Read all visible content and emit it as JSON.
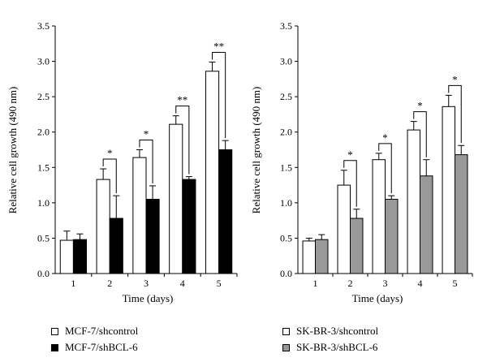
{
  "chart_data": [
    {
      "type": "bar",
      "xlabel": "Time (days)",
      "ylabel": "Relative cell growth (490 nm)",
      "ylim": [
        0,
        3.5
      ],
      "yticks": [
        "0.0",
        "0.5",
        "1.0",
        "1.5",
        "2.0",
        "2.5",
        "3.0",
        "3.5"
      ],
      "categories": [
        "1",
        "2",
        "3",
        "4",
        "5"
      ],
      "series": [
        {
          "name": "MCF-7/shcontrol",
          "color": "#ffffff",
          "values": [
            0.47,
            1.33,
            1.64,
            2.11,
            2.86
          ],
          "errors": [
            0.13,
            0.15,
            0.11,
            0.12,
            0.13
          ]
        },
        {
          "name": "MCF-7/shBCL-6",
          "color": "#000000",
          "values": [
            0.48,
            0.78,
            1.05,
            1.33,
            1.75
          ],
          "errors": [
            0.08,
            0.32,
            0.19,
            0.04,
            0.13
          ]
        }
      ],
      "annotations": [
        "",
        "*",
        "*",
        "**",
        "**"
      ],
      "legend_position": "bottom-left"
    },
    {
      "type": "bar",
      "xlabel": "Time (days)",
      "ylabel": "Relative cell growth (490 nm)",
      "ylim": [
        0,
        3.5
      ],
      "yticks": [
        "0.0",
        "0.5",
        "1.0",
        "1.5",
        "2.0",
        "2.5",
        "3.0",
        "3.5"
      ],
      "categories": [
        "1",
        "2",
        "3",
        "4",
        "5"
      ],
      "series": [
        {
          "name": "SK-BR-3/shcontrol",
          "color": "#ffffff",
          "values": [
            0.46,
            1.25,
            1.61,
            2.03,
            2.36
          ],
          "errors": [
            0.04,
            0.21,
            0.09,
            0.12,
            0.16
          ]
        },
        {
          "name": "SK-BR-3/shBCL-6",
          "color": "#999999",
          "values": [
            0.48,
            0.78,
            1.05,
            1.38,
            1.68
          ],
          "errors": [
            0.07,
            0.13,
            0.05,
            0.23,
            0.13
          ]
        }
      ],
      "annotations": [
        "",
        "*",
        "*",
        "*",
        "*"
      ],
      "legend_position": "bottom-left"
    }
  ]
}
